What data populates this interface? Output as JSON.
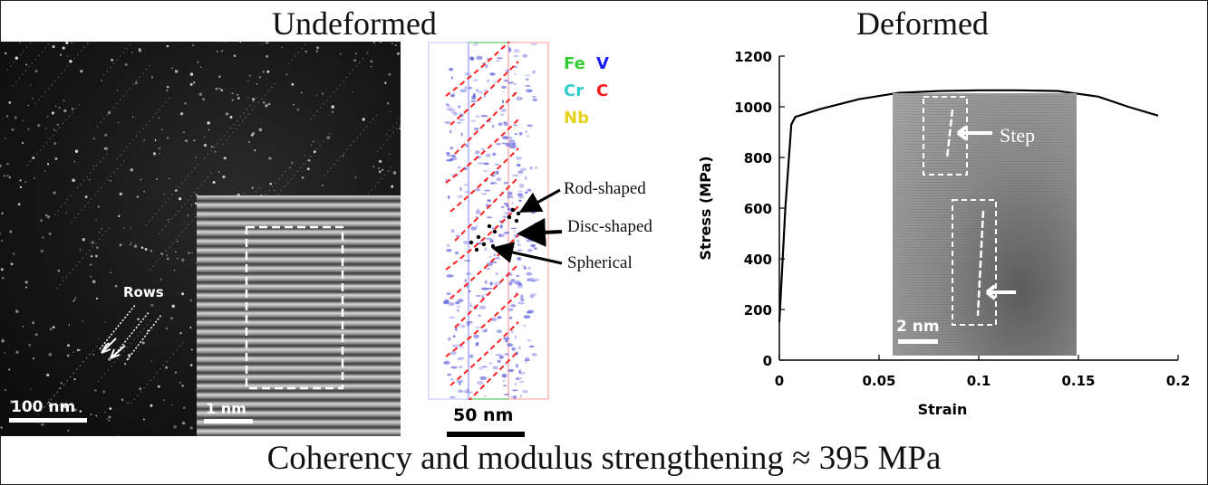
{
  "headings": {
    "left": "Undeformed",
    "right": "Deformed"
  },
  "caption": "Coherency and modulus strengthening ≈ 395 MPa",
  "tem_panel": {
    "scale_label": "100 nm",
    "rows_label": "Rows"
  },
  "hrtem_inset_left": {
    "scale_label": "1 nm"
  },
  "apt_panel": {
    "scale_label": "50 nm",
    "legend": [
      {
        "text": "Fe",
        "color": "#33cc33"
      },
      {
        "text": "V",
        "color": "#1a1aff"
      },
      {
        "text": "Cr",
        "color": "#33cccc"
      },
      {
        "text": "C",
        "color": "#ff1a1a"
      },
      {
        "text": "Nb",
        "color": "#e6d21a"
      }
    ],
    "annotations": {
      "rod": "Rod-shaped",
      "disc": "Disc-shaped",
      "spherical": "Spherical"
    }
  },
  "hrtem_inset_right": {
    "scale_label": "2 nm",
    "step_label": "Step"
  },
  "chart_data": {
    "type": "line",
    "xlabel": "Strain",
    "ylabel": "Stress (MPa)",
    "xlim": [
      0,
      0.2
    ],
    "ylim": [
      0,
      1200
    ],
    "xticks": [
      0,
      0.05,
      0.1,
      0.15,
      0.2
    ],
    "xtick_labels": [
      "0",
      "0.05",
      "0.1",
      "0.15",
      "0.2"
    ],
    "yticks": [
      0,
      200,
      400,
      600,
      800,
      1000,
      1200
    ],
    "ytick_labels": [
      "0",
      "200",
      "400",
      "600",
      "800",
      "1000",
      "1200"
    ],
    "grid": false,
    "series": [
      {
        "color": "#000000",
        "x": [
          0,
          0.003,
          0.006,
          0.008,
          0.02,
          0.04,
          0.06,
          0.08,
          0.1,
          0.12,
          0.14,
          0.16,
          0.175,
          0.19
        ],
        "y": [
          150,
          600,
          930,
          960,
          990,
          1030,
          1055,
          1062,
          1065,
          1065,
          1062,
          1040,
          1000,
          965
        ]
      }
    ]
  }
}
